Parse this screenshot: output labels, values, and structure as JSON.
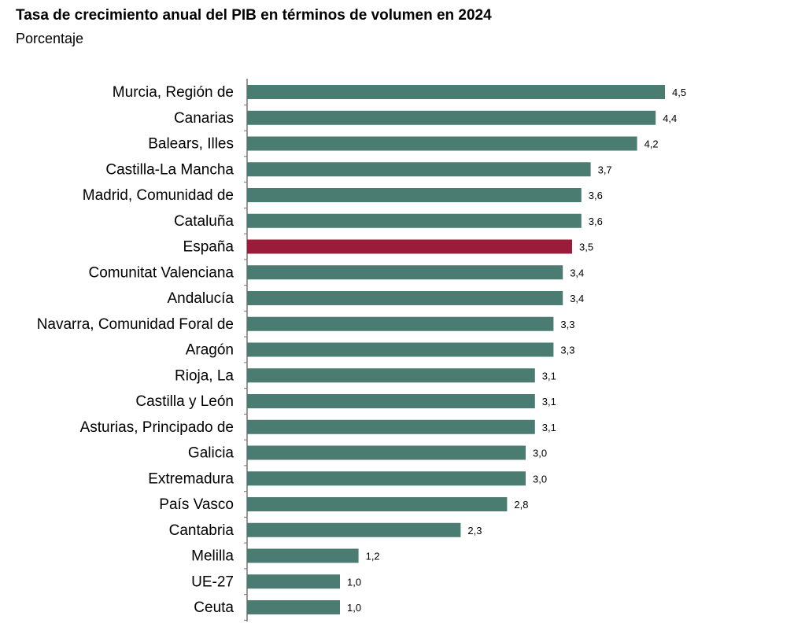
{
  "title": "Tasa de crecimiento anual del PIB en términos de volumen en 2024",
  "subtitle": "Porcentaje",
  "colors": {
    "default_bar": "#4a7c72",
    "highlight_bar": "#9b1b3a",
    "axis": "#777777"
  },
  "chart_data": {
    "type": "bar",
    "orientation": "horizontal",
    "categories": [
      "Murcia, Región de",
      "Canarias",
      "Balears, Illes",
      "Castilla-La Mancha",
      "Madrid, Comunidad de",
      "Cataluña",
      "España",
      "Comunitat Valenciana",
      "Andalucía",
      "Navarra, Comunidad Foral de",
      "Aragón",
      "Rioja, La",
      "Castilla y León",
      "Asturias, Principado de",
      "Galicia",
      "Extremadura",
      "País Vasco",
      "Cantabria",
      "Melilla",
      "UE-27",
      "Ceuta"
    ],
    "values": [
      4.5,
      4.4,
      4.2,
      3.7,
      3.6,
      3.6,
      3.5,
      3.4,
      3.4,
      3.3,
      3.3,
      3.1,
      3.1,
      3.1,
      3.0,
      3.0,
      2.8,
      2.3,
      1.2,
      1.0,
      1.0
    ],
    "value_labels": [
      "4,5",
      "4,4",
      "4,2",
      "3,7",
      "3,6",
      "3,6",
      "3,5",
      "3,4",
      "3,4",
      "3,3",
      "3,3",
      "3,1",
      "3,1",
      "3,1",
      "3,0",
      "3,0",
      "2,8",
      "2,3",
      "1,2",
      "1,0",
      "1,0"
    ],
    "highlight": "España",
    "xlim": [
      0,
      4.5
    ],
    "grid": false
  }
}
